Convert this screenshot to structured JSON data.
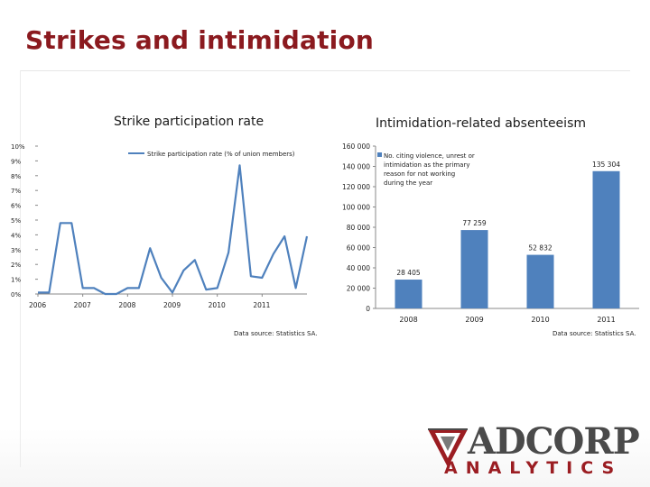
{
  "slide": {
    "title": "Strikes and intimidation"
  },
  "left_chart": {
    "heading": "Strike participation rate",
    "source": "Data source: Statistics SA."
  },
  "right_chart": {
    "heading": "Intimidation-related absenteeism",
    "source": "Data source: Statistics SA."
  },
  "logo": {
    "word": "ADCORP",
    "sub": "ANALYTICS"
  },
  "colors": {
    "series": "#4f81bd",
    "title": "#8b1a1f",
    "logo_red": "#9b1d22"
  },
  "chart_data": [
    {
      "type": "line",
      "legend": [
        "Strike participation rate (% of union members)"
      ],
      "legend_position": "top",
      "series": [
        {
          "name": "Strike participation rate (% of union members)",
          "x": [
            2006.0,
            2006.25,
            2006.5,
            2006.75,
            2007.0,
            2007.25,
            2007.5,
            2007.75,
            2008.0,
            2008.25,
            2008.5,
            2008.75,
            2009.0,
            2009.25,
            2009.5,
            2009.75,
            2010.0,
            2010.25,
            2010.5,
            2010.75,
            2011.0,
            2011.25,
            2011.5,
            2011.75,
            2012.0
          ],
          "values": [
            0.1,
            0.1,
            4.8,
            4.8,
            0.4,
            0.4,
            0.0,
            0.0,
            0.4,
            0.4,
            3.1,
            1.1,
            0.1,
            1.6,
            2.3,
            0.3,
            0.4,
            2.8,
            8.7,
            1.2,
            1.1,
            2.7,
            3.9,
            0.4,
            3.9
          ]
        }
      ],
      "x_ticks": [
        "2006",
        "2007",
        "2008",
        "2009",
        "2010",
        "2011"
      ],
      "y_ticks": [
        "0%",
        "1%",
        "2%",
        "3%",
        "4%",
        "5%",
        "6%",
        "7%",
        "8%",
        "9%",
        "10%"
      ],
      "ylim": [
        0,
        10
      ],
      "grid": false
    },
    {
      "type": "bar",
      "categories": [
        "2008",
        "2009",
        "2010",
        "2011"
      ],
      "series": [
        {
          "name": "No. citing violence, unrest or intimidation as the primary reason for not working during the year",
          "values": [
            28405,
            77259,
            52832,
            135304
          ]
        }
      ],
      "value_labels": [
        "28 405",
        "77 259",
        "52 832",
        "135 304"
      ],
      "legend_lines": [
        "No. citing violence, unrest or",
        "intimidation as the primary",
        "reason for not working",
        "during the year"
      ],
      "legend_position": "top-left",
      "y_ticks": [
        "0",
        "20 000",
        "40 000",
        "60 000",
        "80 000",
        "100 000",
        "120 000",
        "140 000",
        "160 000"
      ],
      "ylim": [
        0,
        160000
      ],
      "grid": false
    }
  ]
}
